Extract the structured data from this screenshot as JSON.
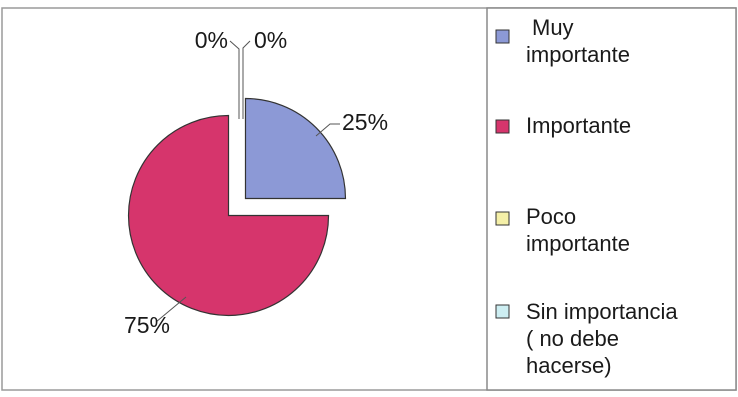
{
  "chart_data": {
    "type": "pie",
    "title": "",
    "slices": [
      {
        "label": "Muy importante",
        "label_lines": [
          "Muy",
          "importante"
        ],
        "value": 25,
        "display": "25%",
        "color": "#8c99d6"
      },
      {
        "label": "Importante",
        "label_lines": [
          "Importante"
        ],
        "value": 75,
        "display": "75%",
        "color": "#d6356c"
      },
      {
        "label": "Poco importante",
        "label_lines": [
          "Poco",
          "importante"
        ],
        "value": 0,
        "display": "0%",
        "color": "#f5f0a8"
      },
      {
        "label": "Sin importancia ( no debe hacerse)",
        "label_lines": [
          "Sin importancia",
          "( no debe",
          "hacerse)"
        ],
        "value": 0,
        "display": "0%",
        "color": "#cdeef2"
      }
    ],
    "legend_placement": "right"
  }
}
